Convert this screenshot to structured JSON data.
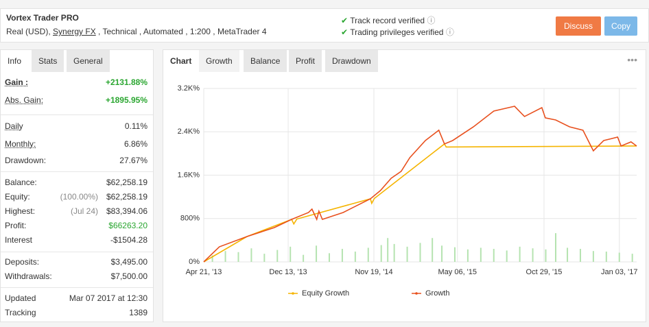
{
  "header": {
    "title": "Vortex Trader PRO",
    "account": [
      "Real (USD), ",
      "Synergy FX",
      " , Technical , Automated , 1:200 , MetaTrader 4"
    ],
    "verified": [
      "Track record verified",
      "Trading privileges verified"
    ],
    "buttons": [
      "Discuss",
      "Copy"
    ]
  },
  "sidebar": {
    "tabs": [
      "Info",
      "Stats",
      "General"
    ],
    "rows": [
      {
        "label": "Gain :",
        "value": "+2131.88%"
      },
      {
        "label": "Abs. Gain:",
        "value": "+1895.95%"
      },
      {
        "label": "Daily",
        "value": "0.11%"
      },
      {
        "label": "Monthly:",
        "value": "6.86%"
      },
      {
        "label": "Drawdown:",
        "value": "27.67%"
      },
      {
        "label": "Balance:",
        "value": "$62,258.19"
      },
      {
        "label": "Equity:",
        "note": "(100.00%)",
        "value": "$62,258.19"
      },
      {
        "label": "Highest:",
        "note": "(Jul 24)",
        "value": "$83,394.06"
      },
      {
        "label": "Profit:",
        "value": "$66263.20"
      },
      {
        "label": "Interest",
        "value": "-$1504.28"
      },
      {
        "label": "Deposits:",
        "value": "$3,495.00"
      },
      {
        "label": "Withdrawals:",
        "value": "$7,500.00"
      },
      {
        "label": "Updated",
        "value": "Mar 07 2017 at 12:30"
      },
      {
        "label": "Tracking",
        "value": "1389"
      }
    ]
  },
  "chart_panel": {
    "tabs": [
      "Chart",
      "Growth",
      "Balance",
      "Profit",
      "Drawdown"
    ]
  },
  "chart_data": {
    "type": "line",
    "xlim": [
      0,
      100
    ],
    "ylim": [
      0,
      3200
    ],
    "xticks": [
      {
        "value": 0,
        "label": "Apr 21, '13"
      },
      {
        "value": 19.5,
        "label": "Dec 13, '13"
      },
      {
        "value": 39.3,
        "label": "Nov 19, '14"
      },
      {
        "value": 58.6,
        "label": "May 06, '15"
      },
      {
        "value": 78.6,
        "label": "Oct 29, '15"
      },
      {
        "value": 96,
        "label": "Jan 03, '17"
      }
    ],
    "yticks": [
      {
        "value": 0,
        "label": "0%"
      },
      {
        "value": 800,
        "label": "800%"
      },
      {
        "value": 1600,
        "label": "1.6K%"
      },
      {
        "value": 2400,
        "label": "2.4K%"
      },
      {
        "value": 3200,
        "label": "3.2K%"
      }
    ],
    "grid": true,
    "series": [
      {
        "name": "Equity Growth",
        "color": "#f5b400",
        "x": [
          0,
          10,
          20.3,
          20.8,
          21.5,
          38.5,
          38.8,
          39.4,
          55.6,
          56,
          100
        ],
        "values": [
          0,
          468,
          784,
          700,
          790,
          1164,
          1080,
          1170,
          2176,
          2120,
          2138
        ]
      },
      {
        "name": "Growth",
        "color": "#e8501e",
        "x": [
          0,
          3.6,
          10,
          16.3,
          20.3,
          24.2,
          25,
          26.1,
          26.6,
          27.4,
          32.2,
          38.5,
          40.8,
          43.3,
          45.6,
          47.6,
          51.2,
          54.3,
          55.6,
          57.5,
          62.3,
          67,
          71.8,
          74.1,
          78.1,
          78.9,
          81.3,
          84.5,
          87.6,
          90,
          92.4,
          95.6,
          96.4,
          98.7,
          100
        ],
        "values": [
          0,
          278,
          468,
          632,
          784,
          911,
          974,
          784,
          936,
          784,
          911,
          1164,
          1315,
          1543,
          1670,
          1923,
          2239,
          2429,
          2176,
          2239,
          2492,
          2783,
          2871,
          2682,
          2846,
          2657,
          2618,
          2492,
          2429,
          2049,
          2239,
          2302,
          2138,
          2214,
          2138
        ]
      }
    ],
    "bars": {
      "color": "#b5e3b0",
      "x": [
        2,
        5,
        8,
        11,
        14,
        17,
        20,
        23,
        26,
        29,
        32,
        35,
        38,
        41,
        42.5,
        44,
        47,
        50,
        52.8,
        55,
        58,
        61,
        64,
        67,
        70,
        73,
        76,
        79,
        81.3,
        84,
        87,
        90,
        93,
        96,
        99
      ],
      "values": [
        120,
        200,
        180,
        250,
        150,
        220,
        280,
        130,
        300,
        160,
        240,
        190,
        260,
        310,
        440,
        330,
        280,
        350,
        440,
        300,
        270,
        230,
        260,
        240,
        210,
        280,
        250,
        230,
        530,
        260,
        240,
        200,
        190,
        170,
        150
      ]
    }
  }
}
